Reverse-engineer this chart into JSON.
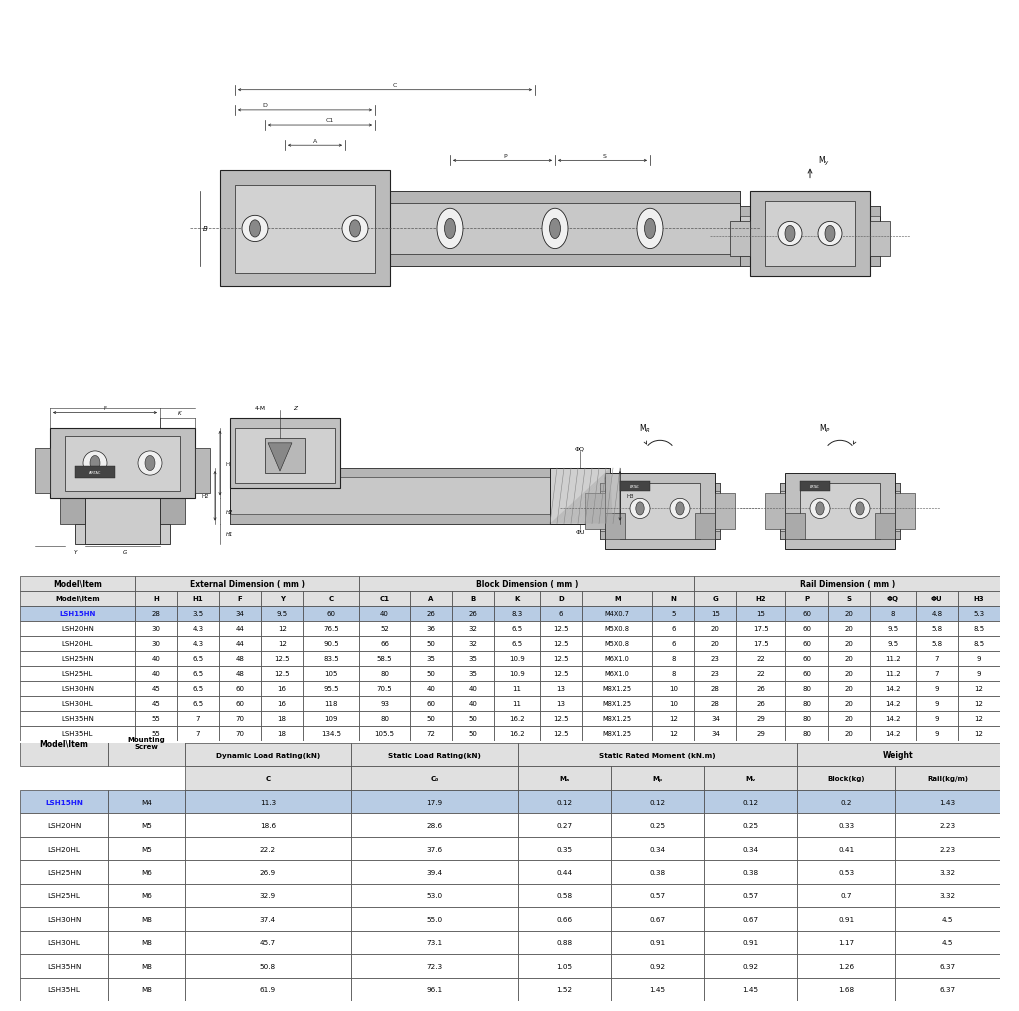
{
  "table1_data": [
    [
      "LSH15HN",
      "28",
      "3.5",
      "34",
      "9.5",
      "60",
      "40",
      "26",
      "26",
      "8.3",
      "6",
      "M4X0.7",
      "5",
      "15",
      "15",
      "60",
      "20",
      "8",
      "4.8",
      "5.3"
    ],
    [
      "LSH20HN",
      "30",
      "4.3",
      "44",
      "12",
      "76.5",
      "52",
      "36",
      "32",
      "6.5",
      "12.5",
      "M5X0.8",
      "6",
      "20",
      "17.5",
      "60",
      "20",
      "9.5",
      "5.8",
      "8.5"
    ],
    [
      "LSH20HL",
      "30",
      "4.3",
      "44",
      "12",
      "90.5",
      "66",
      "50",
      "32",
      "6.5",
      "12.5",
      "M5X0.8",
      "6",
      "20",
      "17.5",
      "60",
      "20",
      "9.5",
      "5.8",
      "8.5"
    ],
    [
      "LSH25HN",
      "40",
      "6.5",
      "48",
      "12.5",
      "83.5",
      "58.5",
      "35",
      "35",
      "10.9",
      "12.5",
      "M6X1.0",
      "8",
      "23",
      "22",
      "60",
      "20",
      "11.2",
      "7",
      "9"
    ],
    [
      "LSH25HL",
      "40",
      "6.5",
      "48",
      "12.5",
      "105",
      "80",
      "50",
      "35",
      "10.9",
      "12.5",
      "M6X1.0",
      "8",
      "23",
      "22",
      "60",
      "20",
      "11.2",
      "7",
      "9"
    ],
    [
      "LSH30HN",
      "45",
      "6.5",
      "60",
      "16",
      "95.5",
      "70.5",
      "40",
      "40",
      "11",
      "13",
      "M8X1.25",
      "10",
      "28",
      "26",
      "80",
      "20",
      "14.2",
      "9",
      "12"
    ],
    [
      "LSH30HL",
      "45",
      "6.5",
      "60",
      "16",
      "118",
      "93",
      "60",
      "40",
      "11",
      "13",
      "M8X1.25",
      "10",
      "28",
      "26",
      "80",
      "20",
      "14.2",
      "9",
      "12"
    ],
    [
      "LSH35HN",
      "55",
      "7",
      "70",
      "18",
      "109",
      "80",
      "50",
      "50",
      "16.2",
      "12.5",
      "M8X1.25",
      "12",
      "34",
      "29",
      "80",
      "20",
      "14.2",
      "9",
      "12"
    ],
    [
      "LSH35HL",
      "55",
      "7",
      "70",
      "18",
      "134.5",
      "105.5",
      "72",
      "50",
      "16.2",
      "12.5",
      "M8X1.25",
      "12",
      "34",
      "29",
      "80",
      "20",
      "14.2",
      "9",
      "12"
    ]
  ],
  "table2_data": [
    [
      "LSH15HN",
      "M4",
      "11.3",
      "17.9",
      "0.12",
      "0.12",
      "0.12",
      "0.2",
      "1.43"
    ],
    [
      "LSH20HN",
      "M5",
      "18.6",
      "28.6",
      "0.27",
      "0.25",
      "0.25",
      "0.33",
      "2.23"
    ],
    [
      "LSH20HL",
      "M5",
      "22.2",
      "37.6",
      "0.35",
      "0.34",
      "0.34",
      "0.41",
      "2.23"
    ],
    [
      "LSH25HN",
      "M6",
      "26.9",
      "39.4",
      "0.44",
      "0.38",
      "0.38",
      "0.53",
      "3.32"
    ],
    [
      "LSH25HL",
      "M6",
      "32.9",
      "53.0",
      "0.58",
      "0.57",
      "0.57",
      "0.7",
      "3.32"
    ],
    [
      "LSH30HN",
      "M8",
      "37.4",
      "55.0",
      "0.66",
      "0.67",
      "0.67",
      "0.91",
      "4.5"
    ],
    [
      "LSH30HL",
      "M8",
      "45.7",
      "73.1",
      "0.88",
      "0.91",
      "0.91",
      "1.17",
      "4.5"
    ],
    [
      "LSH35HN",
      "M8",
      "50.8",
      "72.3",
      "1.05",
      "0.92",
      "0.92",
      "1.26",
      "6.37"
    ],
    [
      "LSH35HL",
      "M8",
      "61.9",
      "96.1",
      "1.52",
      "1.45",
      "1.45",
      "1.68",
      "6.37"
    ]
  ],
  "highlight_color": "#b8cce4",
  "header_color": "#e0e0e0",
  "line_color": "#222222",
  "highlight_text_color": "#1a1aff",
  "draw_bg": "#ffffff",
  "border_color": "#444444"
}
